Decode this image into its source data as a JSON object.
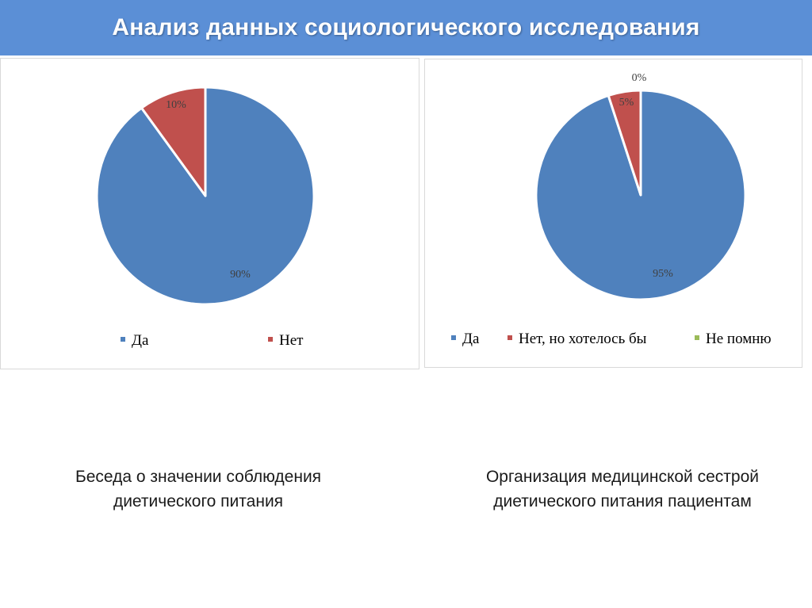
{
  "header": {
    "title": "Анализ данных социологического исследования"
  },
  "charts": {
    "left": {
      "caption_line1": "Беседа о значении соблюдения",
      "caption_line2": "диетического питания"
    },
    "right": {
      "caption_line1": "Организация медицинской сестрой",
      "caption_line2": "диетического питания пациентам"
    }
  },
  "chart_data": [
    {
      "type": "pie",
      "title": "",
      "categories": [
        "Да",
        "Нет"
      ],
      "values": [
        90,
        10
      ],
      "labels": [
        "90%",
        "10%"
      ],
      "colors": [
        "#4F81BD",
        "#C0504D"
      ],
      "legend": "bottom"
    },
    {
      "type": "pie",
      "title": "",
      "categories": [
        "Да",
        "Нет, но хотелось бы",
        "Не помню"
      ],
      "values": [
        95,
        5,
        0
      ],
      "labels": [
        "95%",
        "5%",
        "0%"
      ],
      "colors": [
        "#4F81BD",
        "#C0504D",
        "#9BBB59"
      ],
      "legend": "bottom"
    }
  ]
}
